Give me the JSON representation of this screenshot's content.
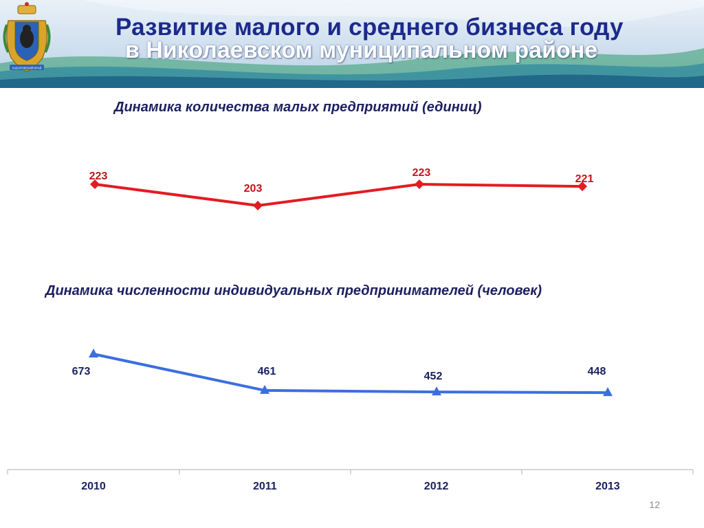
{
  "header": {
    "title_line1": "Развитие малого и среднего бизнеса году",
    "title_line2": "в Николаевском муниципальном районе",
    "emblem_caption": "ХАБАРОВСКИЙ КРАЙ"
  },
  "colors": {
    "title_blue": "#1c2a8c",
    "series_red": "#e31b23",
    "series_red_label": "#c0141b",
    "series_blue": "#3b6fe0",
    "label_dark": "#1c2060",
    "axis": "#c8c8c8"
  },
  "chart_data": [
    {
      "type": "line",
      "title": "Динамика количества малых предприятий (единиц)",
      "x": [
        "2010",
        "2011",
        "2012",
        "2013"
      ],
      "series": [
        {
          "values": [
            223,
            203,
            223,
            221
          ],
          "marker": "diamond",
          "color": "#e31b23"
        }
      ],
      "data_labels": true
    },
    {
      "type": "line",
      "title": "Динамика численности индивидуальных предпринимателей (человек)",
      "x": [
        "2010",
        "2011",
        "2012",
        "2013"
      ],
      "series": [
        {
          "values": [
            673,
            461,
            452,
            448
          ],
          "marker": "triangle",
          "color": "#3b6fe0"
        }
      ],
      "data_labels": true
    }
  ],
  "footer": {
    "page_number": "12"
  }
}
